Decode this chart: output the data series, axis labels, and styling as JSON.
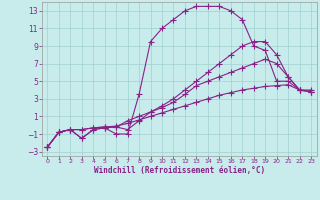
{
  "xlabel": "Windchill (Refroidissement éolien,°C)",
  "bg_color": "#c8ecec",
  "grid_color": "#a0d0d0",
  "line_color": "#882288",
  "xlim": [
    -0.5,
    23.5
  ],
  "ylim": [
    -3.5,
    14.0
  ],
  "yticks": [
    -3,
    -1,
    1,
    3,
    5,
    7,
    9,
    11,
    13
  ],
  "xticks": [
    0,
    1,
    2,
    3,
    4,
    5,
    6,
    7,
    8,
    9,
    10,
    11,
    12,
    13,
    14,
    15,
    16,
    17,
    18,
    19,
    20,
    21,
    22,
    23
  ],
  "line1_x": [
    0,
    1,
    2,
    3,
    4,
    5,
    6,
    7,
    8,
    9,
    10,
    11,
    12,
    13,
    14,
    15,
    16,
    17,
    18,
    19,
    20,
    21,
    22,
    23
  ],
  "line1_y": [
    -2.5,
    -0.8,
    -0.5,
    -0.5,
    -0.3,
    -0.2,
    -0.1,
    0.2,
    0.6,
    1.0,
    1.4,
    1.8,
    2.2,
    2.6,
    3.0,
    3.4,
    3.7,
    4.0,
    4.2,
    4.4,
    4.5,
    4.6,
    4.0,
    4.0
  ],
  "line2_x": [
    0,
    1,
    2,
    3,
    4,
    5,
    6,
    7,
    8,
    9,
    10,
    11,
    12,
    13,
    14,
    15,
    16,
    17,
    18,
    19,
    20,
    21,
    22,
    23
  ],
  "line2_y": [
    -2.5,
    -0.8,
    -0.5,
    -1.5,
    -0.5,
    -0.3,
    -0.2,
    0.5,
    1.0,
    1.5,
    2.0,
    2.6,
    3.5,
    4.5,
    5.0,
    5.5,
    6.0,
    6.5,
    7.0,
    7.5,
    7.0,
    5.5,
    4.0,
    3.8
  ],
  "line3_x": [
    0,
    1,
    2,
    3,
    4,
    5,
    6,
    7,
    8,
    9,
    10,
    11,
    12,
    13,
    14,
    15,
    16,
    17,
    18,
    19,
    20,
    21,
    22,
    23
  ],
  "line3_y": [
    -2.5,
    -0.8,
    -0.5,
    -1.5,
    -0.5,
    -0.3,
    -1.0,
    -1.0,
    3.5,
    9.5,
    11.0,
    12.0,
    13.0,
    13.5,
    13.5,
    13.5,
    13.0,
    12.0,
    9.0,
    8.5,
    5.0,
    5.0,
    4.0,
    3.8
  ],
  "line4_x": [
    0,
    1,
    2,
    3,
    4,
    5,
    6,
    7,
    8,
    9,
    10,
    11,
    12,
    13,
    14,
    15,
    16,
    17,
    18,
    19,
    20,
    21,
    22,
    23
  ],
  "line4_y": [
    -2.5,
    -0.8,
    -0.5,
    -0.5,
    -0.3,
    -0.2,
    -0.2,
    -0.5,
    0.5,
    1.5,
    2.2,
    3.0,
    4.0,
    5.0,
    6.0,
    7.0,
    8.0,
    9.0,
    9.5,
    9.5,
    8.0,
    5.5,
    4.0,
    3.8
  ]
}
